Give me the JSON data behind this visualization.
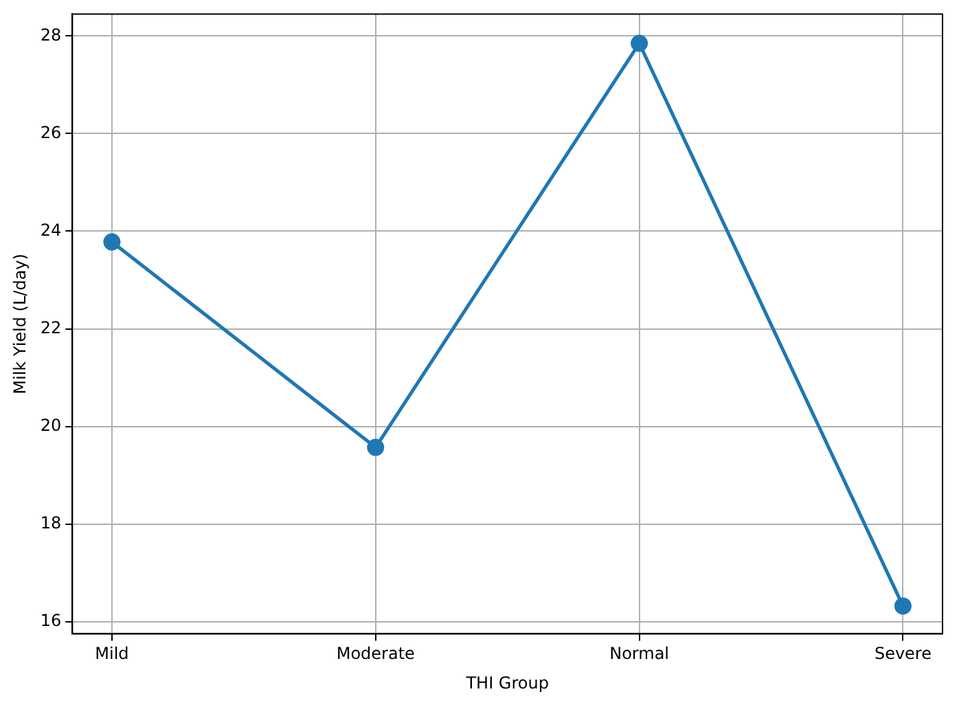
{
  "chart_data": {
    "type": "line",
    "xlabel": "THI Group",
    "ylabel": "Milk Yield (L/day)",
    "categories": [
      "Mild",
      "Moderate",
      "Normal",
      "Severe"
    ],
    "series": [
      {
        "color": "#1f77b4",
        "values": [
          23.78,
          19.57,
          27.85,
          16.32
        ]
      }
    ],
    "ylim": [
      15.75,
      28.45
    ],
    "yticks": [
      16,
      18,
      20,
      22,
      24,
      26,
      28
    ],
    "grid": true,
    "marker": "circle",
    "line_style": "solid",
    "legend": false
  }
}
